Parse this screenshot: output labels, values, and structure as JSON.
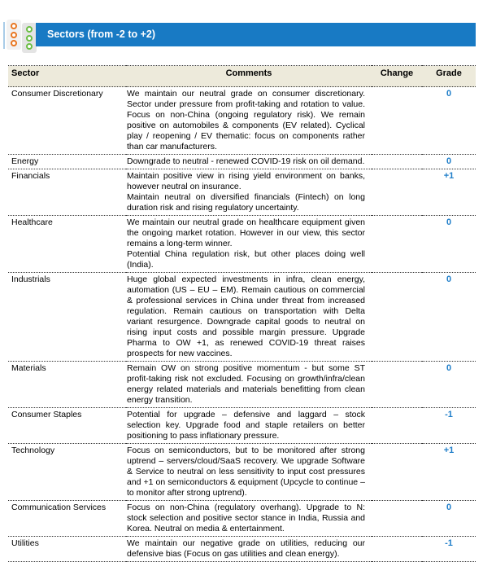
{
  "logo": {
    "orange_color": "#e87722",
    "green_color": "#6cbe45"
  },
  "header": {
    "title": "Sectors (from -2 to +2)",
    "bar_color": "#187ac4"
  },
  "table": {
    "columns": [
      "Sector",
      "Comments",
      "Change",
      "Grade"
    ],
    "header_bg": "#edeadb",
    "grade_color": "#1f7ec9",
    "rows": [
      {
        "sector": "Consumer Discretionary",
        "comments": [
          "We maintain our neutral grade on consumer discretionary. Sector under pressure from profit-taking and rotation to value. Focus on non-China (ongoing regulatory risk). We remain positive on automobiles & components (EV related). Cyclical play / reopening / EV thematic: focus on components rather than car manufacturers."
        ],
        "change": "",
        "grade": "0"
      },
      {
        "sector": "Energy",
        "comments": [
          "Downgrade to neutral - renewed COVID-19 risk on oil demand."
        ],
        "change": "",
        "grade": "0"
      },
      {
        "sector": "Financials",
        "comments": [
          "Maintain positive view in rising yield environment on banks, however neutral on insurance.",
          "Maintain neutral on diversified financials (Fintech) on long duration risk and rising regulatory uncertainty."
        ],
        "change": "",
        "grade": "+1"
      },
      {
        "sector": "Healthcare",
        "comments": [
          "We maintain our neutral grade on healthcare equipment given the ongoing market rotation. However in our view, this sector remains a long-term winner.",
          "Potential China regulation risk, but other places doing well (India)."
        ],
        "change": "",
        "grade": "0"
      },
      {
        "sector": "Industrials",
        "comments": [
          "Huge global expected investments in infra, clean energy, automation (US – EU – EM). Remain cautious on commercial & professional services in China under threat from increased regulation. Remain cautious on transportation with Delta variant resurgence. Downgrade capital goods to neutral on rising input costs and possible margin pressure. Upgrade Pharma to OW +1, as renewed COVID-19 threat raises prospects for new vaccines."
        ],
        "change": "",
        "grade": "0"
      },
      {
        "sector": "Materials",
        "comments": [
          "Remain OW on strong positive momentum - but some ST profit-taking risk not excluded. Focusing on growth/infra/clean energy related materials and materials benefitting from clean energy transition."
        ],
        "change": "",
        "grade": "0"
      },
      {
        "sector": "Consumer Staples",
        "comments": [
          "Potential for upgrade – defensive and laggard – stock selection key. Upgrade food and staple retailers on better positioning to pass inflationary pressure."
        ],
        "change": "",
        "grade": "-1"
      },
      {
        "sector": "Technology",
        "comments": [
          "Focus on semiconductors, but to be monitored after strong uptrend – servers/cloud/SaaS recovery. We upgrade Software & Service to neutral on less sensitivity to input cost pressures and +1 on semiconductors & equipment (Upcycle to continue – to monitor after strong uptrend)."
        ],
        "change": "",
        "grade": "+1"
      },
      {
        "sector": "Communication Services",
        "comments": [
          "Focus on non-China (regulatory overhang). Upgrade to N: stock selection and positive sector stance in India, Russia and Korea. Neutral on media & entertainment."
        ],
        "change": "",
        "grade": "0"
      },
      {
        "sector": "Utilities",
        "comments": [
          "We maintain our negative grade on utilities, reducing our defensive bias (Focus on gas utilities and clean energy)."
        ],
        "change": "",
        "grade": "-1"
      }
    ]
  }
}
